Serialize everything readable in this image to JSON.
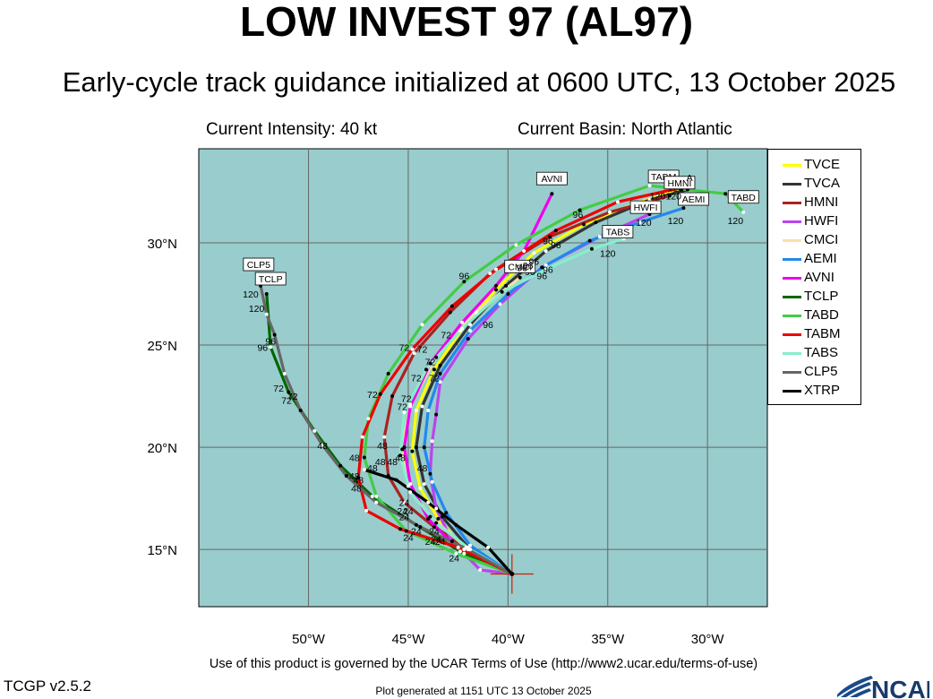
{
  "header": {
    "title": "LOW INVEST 97 (AL97)",
    "subtitle": "Early-cycle track guidance initialized at 0600 UTC, 13 October 2025",
    "intensity": "Current Intensity: 40 kt",
    "basin": "Current Basin: North Atlantic"
  },
  "footer": {
    "terms": "Use of this product is governed by the UCAR Terms of Use (http://www2.ucar.edu/terms-of-use)",
    "version": "TCGP v2.5.2",
    "generated": "Plot generated at 1151 UTC   13 October 2025",
    "logo_text": "NCAR"
  },
  "colors": {
    "ocean": "#99cccc",
    "grid": "#666666",
    "storm_marker": "#cc2200"
  },
  "chart_data": {
    "type": "line",
    "axes": {
      "lon_range": [
        -55.5,
        -27
      ],
      "lat_range": [
        12.2,
        34.6
      ],
      "lon_ticks": [
        {
          "value": -50,
          "label": "50°W"
        },
        {
          "value": -45,
          "label": "45°W"
        },
        {
          "value": -40,
          "label": "40°W"
        },
        {
          "value": -35,
          "label": "35°W"
        },
        {
          "value": -30,
          "label": "30°W"
        }
      ],
      "lat_ticks": [
        {
          "value": 15,
          "label": "15°N"
        },
        {
          "value": 20,
          "label": "20°N"
        },
        {
          "value": 25,
          "label": "25°N"
        },
        {
          "value": 30,
          "label": "30°N"
        }
      ],
      "grid": true
    },
    "initial_position": {
      "lon": -39.8,
      "lat": 13.8
    },
    "series": [
      {
        "name": "TVCE",
        "color": "#ffff00",
        "points": [
          [
            -39.8,
            13.8
          ],
          [
            -42.2,
            15.0
          ],
          [
            -43.5,
            16.5
          ],
          [
            -44.4,
            18.0
          ],
          [
            -44.8,
            19.8
          ],
          [
            -44.6,
            21.8
          ],
          [
            -43.7,
            23.8
          ],
          [
            -42.3,
            25.8
          ],
          [
            -40.6,
            27.7
          ],
          [
            -38.7,
            29.5
          ],
          [
            -36.2,
            30.9
          ],
          [
            -33.4,
            32.0
          ],
          [
            -31.3,
            32.6
          ]
        ],
        "labels": []
      },
      {
        "name": "TVCA",
        "color": "#333333",
        "points": [
          [
            -39.8,
            13.8
          ],
          [
            -42.0,
            15.1
          ],
          [
            -43.3,
            16.6
          ],
          [
            -44.2,
            18.2
          ],
          [
            -44.6,
            20.0
          ],
          [
            -44.3,
            22.0
          ],
          [
            -43.4,
            24.0
          ],
          [
            -41.9,
            26.0
          ],
          [
            -40.1,
            27.9
          ],
          [
            -38.1,
            29.6
          ],
          [
            -35.6,
            31.0
          ],
          [
            -32.9,
            32.1
          ],
          [
            -31.0,
            32.6
          ]
        ],
        "labels": []
      },
      {
        "name": "HMNI",
        "color": "#aa2222",
        "points": [
          [
            -39.8,
            13.8
          ],
          [
            -41.9,
            15.0
          ],
          [
            -43.7,
            16.1
          ],
          [
            -45.2,
            17.3
          ],
          [
            -46.0,
            18.6
          ],
          [
            -46.2,
            20.5
          ],
          [
            -45.8,
            22.5
          ],
          [
            -44.7,
            24.6
          ],
          [
            -42.9,
            26.6
          ],
          [
            -40.9,
            28.5
          ],
          [
            -37.9,
            30.3
          ],
          [
            -34.9,
            31.5
          ],
          [
            -31.9,
            32.3
          ]
        ],
        "labels": [
          {
            "text": "24",
            "lon": -43.6,
            "lat": 15.5
          },
          {
            "text": "48",
            "lon": -46.3,
            "lat": 20.1
          },
          {
            "text": "72",
            "lon": -45.1,
            "lat": 22.4
          },
          {
            "text": "96",
            "lon": -38.0,
            "lat": 30.1
          }
        ]
      },
      {
        "name": "HWFI",
        "color": "#bb44ee",
        "points": [
          [
            -39.8,
            13.8
          ],
          [
            -41.4,
            14.0
          ],
          [
            -42.8,
            15.4
          ],
          [
            -43.6,
            17.0
          ],
          [
            -43.9,
            18.7
          ],
          [
            -43.8,
            20.3
          ],
          [
            -43.6,
            21.6
          ],
          [
            -43.4,
            23.2
          ],
          [
            -42.0,
            25.3
          ],
          [
            -40.4,
            27.0
          ],
          [
            -38.3,
            28.8
          ],
          [
            -35.4,
            30.3
          ],
          [
            -32.9,
            31.4
          ]
        ],
        "labels": [
          {
            "text": "24",
            "lon": -43.9,
            "lat": 15.4
          },
          {
            "text": "48",
            "lon": -44.3,
            "lat": 19.0
          },
          {
            "text": "72",
            "lon": -43.7,
            "lat": 23.4
          },
          {
            "text": "96",
            "lon": -38.9,
            "lat": 28.6
          },
          {
            "text": "120",
            "lon": -33.2,
            "lat": 31.0
          }
        ]
      },
      {
        "name": "CMCI",
        "color": "#ffddaa",
        "points": [
          [
            -39.8,
            13.8
          ],
          [
            -42.1,
            15.1
          ],
          [
            -43.9,
            16.6
          ],
          [
            -45.0,
            18.1
          ],
          [
            -45.3,
            19.9
          ],
          [
            -44.9,
            22.1
          ],
          [
            -43.6,
            24.4
          ],
          [
            -41.6,
            26.6
          ],
          [
            -39.4,
            28.3
          ]
        ],
        "labels": [
          {
            "text": "CMCI",
            "lon": -39.4,
            "lat": 28.8,
            "boxed": true
          }
        ]
      },
      {
        "name": "AEMI",
        "color": "#2288ee",
        "points": [
          [
            -39.8,
            13.8
          ],
          [
            -41.9,
            15.2
          ],
          [
            -43.1,
            16.8
          ],
          [
            -43.8,
            18.3
          ],
          [
            -44.2,
            20.0
          ],
          [
            -44.0,
            21.8
          ],
          [
            -43.4,
            23.6
          ],
          [
            -41.9,
            25.7
          ],
          [
            -40.0,
            27.5
          ],
          [
            -38.1,
            28.9
          ],
          [
            -35.9,
            30.1
          ],
          [
            -33.4,
            31.0
          ],
          [
            -31.2,
            31.7
          ]
        ],
        "labels": [
          {
            "text": "96",
            "lon": -38.3,
            "lat": 28.4
          },
          {
            "text": "AEMI",
            "lon": -30.7,
            "lat": 32.1,
            "boxed": true
          },
          {
            "text": "120",
            "lon": -31.6,
            "lat": 31.1
          }
        ]
      },
      {
        "name": "AVNI",
        "color": "#ee00ee",
        "points": [
          [
            -39.8,
            13.8
          ],
          [
            -42.4,
            14.9
          ],
          [
            -44.0,
            16.5
          ],
          [
            -44.9,
            18.2
          ],
          [
            -45.2,
            20.0
          ],
          [
            -44.9,
            22.0
          ],
          [
            -43.9,
            24.1
          ],
          [
            -42.3,
            26.1
          ],
          [
            -40.6,
            27.9
          ],
          [
            -39.2,
            29.6
          ],
          [
            -37.8,
            32.4
          ]
        ],
        "labels": [
          {
            "text": "AVNI",
            "lon": -37.8,
            "lat": 33.1,
            "boxed": true
          }
        ]
      },
      {
        "name": "TCLP",
        "color": "#006600",
        "points": [
          [
            -39.8,
            13.8
          ],
          [
            -42.2,
            14.8
          ],
          [
            -44.6,
            16.2
          ],
          [
            -46.8,
            17.6
          ],
          [
            -48.4,
            19.1
          ],
          [
            -49.7,
            20.8
          ],
          [
            -51.0,
            22.7
          ],
          [
            -51.9,
            24.9
          ],
          [
            -52.1,
            27.5
          ]
        ],
        "labels": [
          {
            "text": "48",
            "lon": -47.7,
            "lat": 19.5
          },
          {
            "text": "72",
            "lon": -51.5,
            "lat": 22.9
          },
          {
            "text": "96",
            "lon": -51.9,
            "lat": 25.2
          },
          {
            "text": "TCLP",
            "lon": -51.9,
            "lat": 28.2,
            "boxed": true
          },
          {
            "text": "120",
            "lon": -52.6,
            "lat": 26.8
          }
        ]
      },
      {
        "name": "TABD",
        "color": "#44cc44",
        "points": [
          [
            -39.8,
            13.8
          ],
          [
            -42.6,
            14.8
          ],
          [
            -45.1,
            15.9
          ],
          [
            -46.6,
            17.6
          ],
          [
            -47.2,
            19.5
          ],
          [
            -47.0,
            21.4
          ],
          [
            -46.0,
            23.6
          ],
          [
            -44.3,
            26.0
          ],
          [
            -42.2,
            28.1
          ],
          [
            -39.6,
            29.9
          ],
          [
            -36.4,
            31.6
          ],
          [
            -32.9,
            32.8
          ],
          [
            -29.1,
            32.4
          ],
          [
            -28.2,
            31.5
          ]
        ],
        "labels": [
          {
            "text": "TABD",
            "lon": -28.2,
            "lat": 32.2,
            "boxed": true
          },
          {
            "text": "120",
            "lon": -28.6,
            "lat": 31.1
          }
        ]
      },
      {
        "name": "TABM",
        "color": "#ee0000",
        "points": [
          [
            -39.8,
            13.8
          ],
          [
            -42.5,
            15.1
          ],
          [
            -45.4,
            16.0
          ],
          [
            -47.1,
            16.9
          ],
          [
            -47.5,
            18.5
          ],
          [
            -47.3,
            20.5
          ],
          [
            -46.4,
            22.6
          ],
          [
            -44.8,
            24.8
          ],
          [
            -42.8,
            26.9
          ],
          [
            -40.6,
            28.7
          ],
          [
            -37.6,
            30.6
          ],
          [
            -34.5,
            32.0
          ],
          [
            -31.3,
            32.7
          ]
        ],
        "labels": [
          {
            "text": "24",
            "lon": -45.0,
            "lat": 15.6
          },
          {
            "text": "48",
            "lon": -47.6,
            "lat": 18.0
          },
          {
            "text": "72",
            "lon": -46.8,
            "lat": 22.6
          },
          {
            "text": "TABM",
            "lon": -32.2,
            "lat": 33.2,
            "boxed": true
          }
        ]
      },
      {
        "name": "TABS",
        "color": "#88eecc",
        "points": [
          [
            -39.8,
            13.8
          ],
          [
            -41.9,
            15.0
          ],
          [
            -43.6,
            16.3
          ],
          [
            -44.9,
            17.8
          ],
          [
            -45.4,
            19.6
          ],
          [
            -45.2,
            21.7
          ],
          [
            -44.1,
            23.8
          ],
          [
            -42.4,
            25.7
          ],
          [
            -40.3,
            27.6
          ],
          [
            -38.1,
            28.7
          ],
          [
            -35.8,
            29.7
          ],
          [
            -34.2,
            30.2
          ]
        ],
        "labels": [
          {
            "text": "TABS",
            "lon": -34.5,
            "lat": 30.5,
            "boxed": true
          },
          {
            "text": "120",
            "lon": -35.0,
            "lat": 29.5
          }
        ]
      },
      {
        "name": "CLP5",
        "color": "#666666",
        "points": [
          [
            -39.8,
            13.8
          ],
          [
            -42.0,
            15.0
          ],
          [
            -44.4,
            16.1
          ],
          [
            -46.6,
            17.3
          ],
          [
            -48.1,
            18.6
          ],
          [
            -49.3,
            20.1
          ],
          [
            -50.4,
            21.8
          ],
          [
            -51.2,
            23.6
          ],
          [
            -51.7,
            25.5
          ],
          [
            -52.1,
            26.5
          ],
          [
            -52.4,
            27.9
          ]
        ],
        "labels": [
          {
            "text": "24",
            "lon": -45.2,
            "lat": 16.6
          },
          {
            "text": "48",
            "lon": -49.3,
            "lat": 20.1
          },
          {
            "text": "72",
            "lon": -50.8,
            "lat": 22.5
          },
          {
            "text": "96",
            "lon": -52.3,
            "lat": 24.9
          },
          {
            "text": "CLP5",
            "lon": -52.5,
            "lat": 28.9,
            "boxed": true
          },
          {
            "text": "120",
            "lon": -52.9,
            "lat": 27.5
          }
        ]
      },
      {
        "name": "XTRP",
        "color": "#000000",
        "points": [
          [
            -39.8,
            13.8
          ],
          [
            -41.0,
            15.1
          ],
          [
            -42.6,
            16.2
          ],
          [
            -44.0,
            17.3
          ],
          [
            -45.6,
            18.4
          ],
          [
            -47.2,
            18.9
          ]
        ],
        "labels": [
          {
            "text": "48",
            "lon": -47.7,
            "lat": 18.6
          }
        ]
      }
    ],
    "extra_labels": [
      {
        "text": "24",
        "lon": -42.7,
        "lat": 14.6
      },
      {
        "text": "24",
        "lon": -43.7,
        "lat": 15.9
      },
      {
        "text": "24",
        "lon": -43.4,
        "lat": 15.4
      },
      {
        "text": "24",
        "lon": -44.6,
        "lat": 15.9
      },
      {
        "text": "24",
        "lon": -45.0,
        "lat": 16.9
      },
      {
        "text": "24",
        "lon": -45.2,
        "lat": 17.3
      },
      {
        "text": "24",
        "lon": -45.3,
        "lat": 16.9
      },
      {
        "text": "48",
        "lon": -45.4,
        "lat": 19.5
      },
      {
        "text": "48",
        "lon": -45.8,
        "lat": 19.3
      },
      {
        "text": "48",
        "lon": -47.5,
        "lat": 18.4
      },
      {
        "text": "48",
        "lon": -46.8,
        "lat": 19.0
      },
      {
        "text": "48",
        "lon": -46.4,
        "lat": 19.3
      },
      {
        "text": "72",
        "lon": -45.3,
        "lat": 22.0
      },
      {
        "text": "72",
        "lon": -45.2,
        "lat": 24.9
      },
      {
        "text": "72",
        "lon": -44.6,
        "lat": 23.4
      },
      {
        "text": "72",
        "lon": -43.9,
        "lat": 24.2
      },
      {
        "text": "72",
        "lon": -44.3,
        "lat": 24.8
      },
      {
        "text": "72",
        "lon": -43.1,
        "lat": 25.5
      },
      {
        "text": "72",
        "lon": -51.1,
        "lat": 22.3
      },
      {
        "text": "96",
        "lon": -42.2,
        "lat": 28.4
      },
      {
        "text": "96",
        "lon": -39.3,
        "lat": 28.8
      },
      {
        "text": "96",
        "lon": -39.0,
        "lat": 28.9
      },
      {
        "text": "96",
        "lon": -38.7,
        "lat": 29.1
      },
      {
        "text": "96",
        "lon": -36.5,
        "lat": 31.4
      },
      {
        "text": "96",
        "lon": -41.0,
        "lat": 26.0
      },
      {
        "text": "96",
        "lon": -38.0,
        "lat": 28.7
      },
      {
        "text": "96",
        "lon": -37.6,
        "lat": 29.9
      },
      {
        "text": "120",
        "lon": -32.5,
        "lat": 32.3
      },
      {
        "text": "120",
        "lon": -31.7,
        "lat": 32.3
      },
      {
        "text": "120",
        "lon": -31.6,
        "lat": 32.7
      },
      {
        "text": "HMNI",
        "lon": -31.4,
        "lat": 32.9,
        "boxed": true
      },
      {
        "text": "HWFI",
        "lon": -33.1,
        "lat": 31.7,
        "boxed": true
      },
      {
        "text": "A",
        "lon": -30.9,
        "lat": 33.2
      }
    ]
  }
}
